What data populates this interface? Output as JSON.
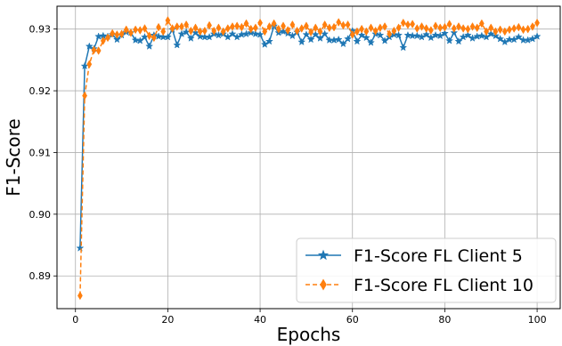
{
  "chart_data": {
    "type": "line",
    "title": "",
    "xlabel": "Epochs",
    "ylabel": "F1-Score",
    "xlim": [
      -4,
      105
    ],
    "ylim": [
      0.8847,
      0.9337
    ],
    "x_ticks": [
      0,
      20,
      40,
      60,
      80,
      100
    ],
    "y_ticks": [
      0.89,
      0.9,
      0.91,
      0.92,
      0.93
    ],
    "y_tick_labels": [
      "0.89",
      "0.90",
      "0.91",
      "0.92",
      "0.93"
    ],
    "grid": true,
    "legend_position": "lower-right",
    "x": [
      1,
      2,
      3,
      4,
      5,
      6,
      7,
      8,
      9,
      10,
      11,
      12,
      13,
      14,
      15,
      16,
      17,
      18,
      19,
      20,
      21,
      22,
      23,
      24,
      25,
      26,
      27,
      28,
      29,
      30,
      31,
      32,
      33,
      34,
      35,
      36,
      37,
      38,
      39,
      40,
      41,
      42,
      43,
      44,
      45,
      46,
      47,
      48,
      49,
      50,
      51,
      52,
      53,
      54,
      55,
      56,
      57,
      58,
      59,
      60,
      61,
      62,
      63,
      64,
      65,
      66,
      67,
      68,
      69,
      70,
      71,
      72,
      73,
      74,
      75,
      76,
      77,
      78,
      79,
      80,
      81,
      82,
      83,
      84,
      85,
      86,
      87,
      88,
      89,
      90,
      91,
      92,
      93,
      94,
      95,
      96,
      97,
      98,
      99,
      100
    ],
    "series": [
      {
        "name": "F1-Score FL Client 5",
        "color": "#1f77b4",
        "marker": "star",
        "dash": "solid",
        "values": [
          0.8945,
          0.924,
          0.9272,
          0.9268,
          0.9288,
          0.9289,
          0.9288,
          0.9291,
          0.9283,
          0.929,
          0.9295,
          0.9294,
          0.9282,
          0.9281,
          0.9287,
          0.9272,
          0.929,
          0.9288,
          0.9287,
          0.9287,
          0.9299,
          0.9274,
          0.9292,
          0.9295,
          0.9285,
          0.9294,
          0.9288,
          0.9287,
          0.9287,
          0.9292,
          0.929,
          0.9292,
          0.9287,
          0.9292,
          0.9287,
          0.9291,
          0.9292,
          0.9294,
          0.9292,
          0.9291,
          0.9275,
          0.928,
          0.9305,
          0.9294,
          0.9296,
          0.9293,
          0.9289,
          0.9295,
          0.9279,
          0.9291,
          0.9283,
          0.9291,
          0.9285,
          0.9292,
          0.9282,
          0.9282,
          0.9283,
          0.9276,
          0.9284,
          0.9297,
          0.928,
          0.929,
          0.9286,
          0.9278,
          0.9292,
          0.929,
          0.9281,
          0.9287,
          0.9291,
          0.929,
          0.927,
          0.929,
          0.9289,
          0.9289,
          0.9287,
          0.9291,
          0.9286,
          0.929,
          0.9289,
          0.9293,
          0.9281,
          0.9294,
          0.928,
          0.9287,
          0.929,
          0.9285,
          0.9288,
          0.9289,
          0.9287,
          0.9292,
          0.9289,
          0.9284,
          0.9279,
          0.9283,
          0.9283,
          0.9287,
          0.9282,
          0.9282,
          0.9284,
          0.9288
        ]
      },
      {
        "name": "F1-Score FL Client 10",
        "color": "#ff7f0e",
        "marker": "diamond",
        "dash": "dashed",
        "values": [
          0.8868,
          0.9192,
          0.9243,
          0.9266,
          0.9265,
          0.9281,
          0.9286,
          0.9293,
          0.9291,
          0.9292,
          0.9299,
          0.9294,
          0.9299,
          0.9298,
          0.9301,
          0.9289,
          0.9286,
          0.9303,
          0.9296,
          0.9314,
          0.9301,
          0.9304,
          0.9304,
          0.9307,
          0.9297,
          0.9302,
          0.9296,
          0.9297,
          0.9306,
          0.9297,
          0.9302,
          0.9296,
          0.9301,
          0.9304,
          0.9305,
          0.9303,
          0.9309,
          0.93,
          0.9302,
          0.931,
          0.9296,
          0.9304,
          0.9309,
          0.93,
          0.9305,
          0.9298,
          0.9307,
          0.9297,
          0.9301,
          0.9305,
          0.9295,
          0.9302,
          0.9296,
          0.9307,
          0.9302,
          0.9303,
          0.9311,
          0.9306,
          0.9307,
          0.9291,
          0.9296,
          0.93,
          0.9296,
          0.9302,
          0.9297,
          0.9302,
          0.9304,
          0.9292,
          0.9297,
          0.9302,
          0.931,
          0.9307,
          0.9308,
          0.9301,
          0.9304,
          0.9301,
          0.9298,
          0.9305,
          0.9302,
          0.9303,
          0.9308,
          0.9301,
          0.9304,
          0.9301,
          0.93,
          0.9304,
          0.9302,
          0.9309,
          0.9296,
          0.9302,
          0.9296,
          0.9299,
          0.9296,
          0.9299,
          0.9301,
          0.9303,
          0.9299,
          0.93,
          0.9304,
          0.931
        ]
      }
    ]
  }
}
